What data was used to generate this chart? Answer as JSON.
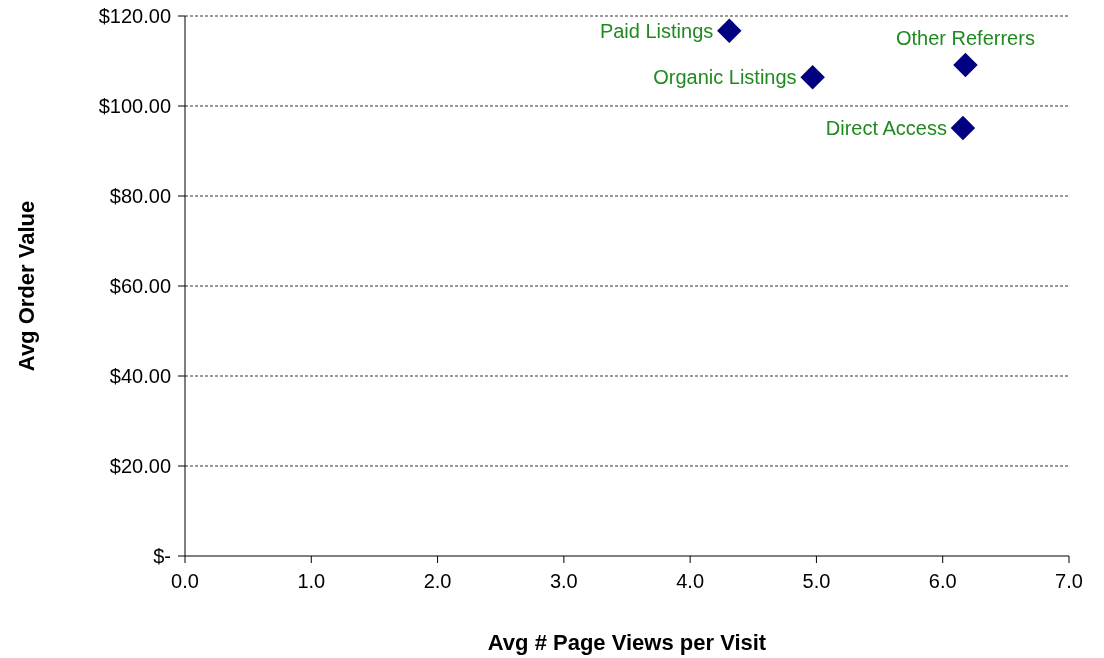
{
  "chart_data": {
    "type": "scatter",
    "xlabel": "Avg # Page Views per Visit",
    "ylabel": "Avg Order Value",
    "x": [
      4.31,
      4.97,
      6.18,
      6.16
    ],
    "series": [
      {
        "color": "#000080",
        "values": [
          116.7,
          106.4,
          109.1,
          95.1
        ]
      }
    ],
    "marker": "diamond",
    "xlim": [
      0,
      7
    ],
    "ylim": [
      0,
      120
    ],
    "xticks": [
      {
        "value": 0,
        "label": "0.0"
      },
      {
        "value": 1,
        "label": "1.0"
      },
      {
        "value": 2,
        "label": "2.0"
      },
      {
        "value": 3,
        "label": "3.0"
      },
      {
        "value": 4,
        "label": "4.0"
      },
      {
        "value": 5,
        "label": "5.0"
      },
      {
        "value": 6,
        "label": "6.0"
      },
      {
        "value": 7,
        "label": "7.0"
      }
    ],
    "yticks": [
      {
        "value": 0,
        "label": "$-"
      },
      {
        "value": 20,
        "label": "$20.00"
      },
      {
        "value": 40,
        "label": "$40.00"
      },
      {
        "value": 60,
        "label": "$60.00"
      },
      {
        "value": 80,
        "label": "$80.00"
      },
      {
        "value": 100,
        "label": "$100.00"
      },
      {
        "value": 120,
        "label": "$120.00"
      }
    ],
    "grid": "y",
    "annotations": [
      {
        "text": "Paid Listings",
        "x": 4.31,
        "y": 116.7
      },
      {
        "text": "Organic Listings",
        "x": 4.97,
        "y": 106.4
      },
      {
        "text": "Other Referrers",
        "x": 6.18,
        "y": 109.1
      },
      {
        "text": "Direct Access",
        "x": 6.16,
        "y": 95.1
      }
    ]
  }
}
